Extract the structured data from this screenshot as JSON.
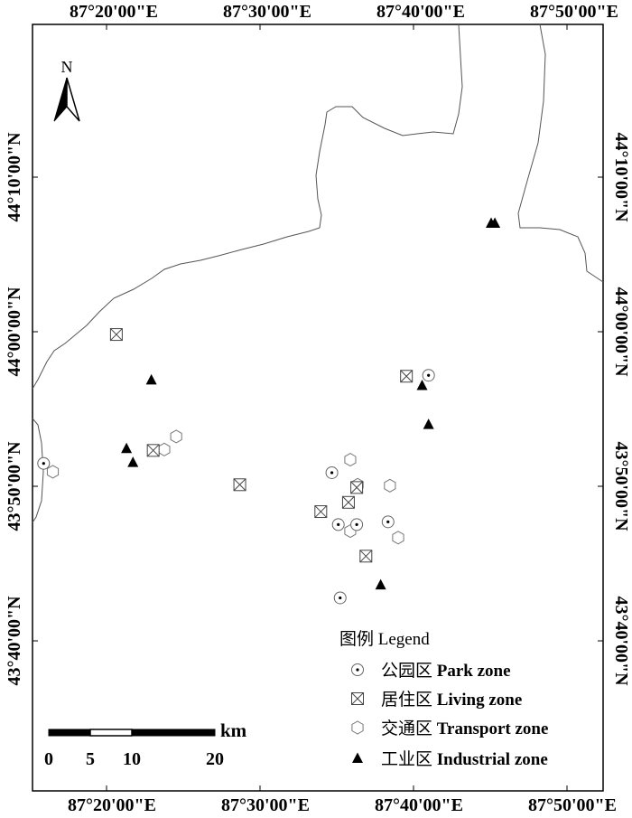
{
  "coords_top": [
    "87°20'00\"E",
    "87°30'00\"E",
    "87°40'00\"E",
    "87°50'00\"E"
  ],
  "coords_bottom": [
    "87°20'00\"E",
    "87°30'00\"E",
    "87°40'00\"E",
    "87°50'00\"E"
  ],
  "coords_left": [
    "44°10'00\"N",
    "44°00'00\"N",
    "43°50'00\"N",
    "43°40'00\"N"
  ],
  "coords_right": [
    "44°10'00\"N",
    "44°00'00\"N",
    "43°50'00\"N",
    "43°40'00\"N"
  ],
  "north": {
    "label": "N"
  },
  "legend": {
    "title": "图例  Legend",
    "items": [
      {
        "key": "park",
        "cn": "公园区",
        "en": "Park zone"
      },
      {
        "key": "living",
        "cn": "居住区",
        "en": "Living zone"
      },
      {
        "key": "transport",
        "cn": "交通区",
        "en": "Transport zone"
      },
      {
        "key": "industrial",
        "cn": "工业区",
        "en": "Industrial zone"
      }
    ]
  },
  "scale": {
    "unit": "km",
    "ticks": [
      "0",
      "5",
      "10",
      "20"
    ]
  },
  "sites": {
    "park": [
      {
        "lon": 87.265,
        "lat": 43.858
      },
      {
        "lon": 87.639,
        "lat": 43.795
      },
      {
        "lon": 87.578,
        "lat": 43.848
      },
      {
        "lon": 87.585,
        "lat": 43.792
      },
      {
        "lon": 87.605,
        "lat": 43.792
      },
      {
        "lon": 87.587,
        "lat": 43.713
      },
      {
        "lon": 87.683,
        "lat": 43.953
      }
    ],
    "living": [
      {
        "lon": 87.344,
        "lat": 43.997
      },
      {
        "lon": 87.384,
        "lat": 43.872
      },
      {
        "lon": 87.478,
        "lat": 43.835
      },
      {
        "lon": 87.566,
        "lat": 43.806
      },
      {
        "lon": 87.596,
        "lat": 43.816
      },
      {
        "lon": 87.605,
        "lat": 43.832
      },
      {
        "lon": 87.615,
        "lat": 43.758
      },
      {
        "lon": 87.659,
        "lat": 43.952
      }
    ],
    "transport": [
      {
        "lon": 87.275,
        "lat": 43.849
      },
      {
        "lon": 87.396,
        "lat": 43.873
      },
      {
        "lon": 87.409,
        "lat": 43.887
      },
      {
        "lon": 87.598,
        "lat": 43.862
      },
      {
        "lon": 87.606,
        "lat": 43.835
      },
      {
        "lon": 87.598,
        "lat": 43.785
      },
      {
        "lon": 87.641,
        "lat": 43.834
      },
      {
        "lon": 87.65,
        "lat": 43.778
      }
    ],
    "industrial": [
      {
        "lon": 87.355,
        "lat": 43.874
      },
      {
        "lon": 87.362,
        "lat": 43.859
      },
      {
        "lon": 87.382,
        "lat": 43.948
      },
      {
        "lon": 87.631,
        "lat": 43.727
      },
      {
        "lon": 87.676,
        "lat": 43.942
      },
      {
        "lon": 87.683,
        "lat": 43.9
      },
      {
        "lon": 87.751,
        "lat": 44.117
      },
      {
        "lon": 87.755,
        "lat": 44.117
      }
    ]
  },
  "colors": {
    "symbol": "#000000",
    "line": "#000000",
    "boundary": "#555555"
  }
}
